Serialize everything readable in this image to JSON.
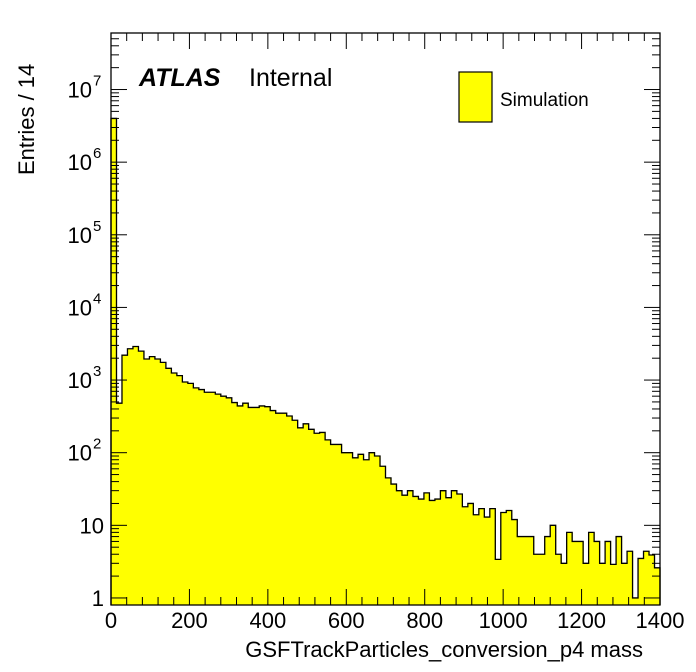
{
  "chart_data": {
    "type": "bar",
    "histogram": true,
    "title": "",
    "xlabel": "GSFTrackParticles_conversion_p4 mass",
    "ylabel": "Entries / 14",
    "xlim": [
      0,
      1400
    ],
    "ylim": [
      0.8,
      60000000
    ],
    "yscale": "log",
    "bin_width": 14,
    "grid": false,
    "legend_position": "top-right",
    "x_ticks": [
      {
        "value": 0,
        "label": "0"
      },
      {
        "value": 200,
        "label": "200"
      },
      {
        "value": 400,
        "label": "400"
      },
      {
        "value": 600,
        "label": "600"
      },
      {
        "value": 800,
        "label": "800"
      },
      {
        "value": 1000,
        "label": "1000"
      },
      {
        "value": 1200,
        "label": "1200"
      },
      {
        "value": 1400,
        "label": "1400"
      }
    ],
    "y_ticks": [
      {
        "value": 1,
        "base": "1",
        "exp": ""
      },
      {
        "value": 10,
        "base": "10",
        "exp": ""
      },
      {
        "value": 100,
        "base": "10",
        "exp": "2"
      },
      {
        "value": 1000,
        "base": "10",
        "exp": "3"
      },
      {
        "value": 10000,
        "base": "10",
        "exp": "4"
      },
      {
        "value": 100000,
        "base": "10",
        "exp": "5"
      },
      {
        "value": 1000000,
        "base": "10",
        "exp": "6"
      },
      {
        "value": 10000000,
        "base": "10",
        "exp": "7"
      }
    ],
    "series": [
      {
        "name": "Simulation",
        "color": "#ffff00",
        "edge_color": "#000000",
        "values": [
          4000000,
          480,
          2200,
          2700,
          2900,
          2500,
          1950,
          2100,
          1950,
          1750,
          1450,
          1250,
          1150,
          940,
          900,
          780,
          740,
          680,
          680,
          640,
          600,
          570,
          490,
          440,
          480,
          420,
          420,
          440,
          430,
          380,
          350,
          350,
          320,
          280,
          220,
          250,
          210,
          185,
          190,
          150,
          130,
          130,
          100,
          100,
          85,
          95,
          80,
          100,
          90,
          65,
          45,
          37,
          30,
          26,
          30,
          25,
          23,
          28,
          22,
          23,
          30,
          24,
          30,
          27,
          18,
          20,
          14,
          17,
          13,
          17,
          3.4,
          15,
          16,
          12,
          7,
          7,
          7,
          4,
          4,
          7,
          10,
          4,
          3,
          8,
          6,
          6,
          3,
          8,
          6,
          3,
          6,
          2.9,
          7,
          3,
          4.4,
          1,
          3.5,
          4.4,
          3.9,
          2.6
        ]
      }
    ]
  },
  "annotations": {
    "atlas_label": "ATLAS",
    "atlas_sublabel": "Internal"
  },
  "legend": {
    "label": "Simulation"
  }
}
